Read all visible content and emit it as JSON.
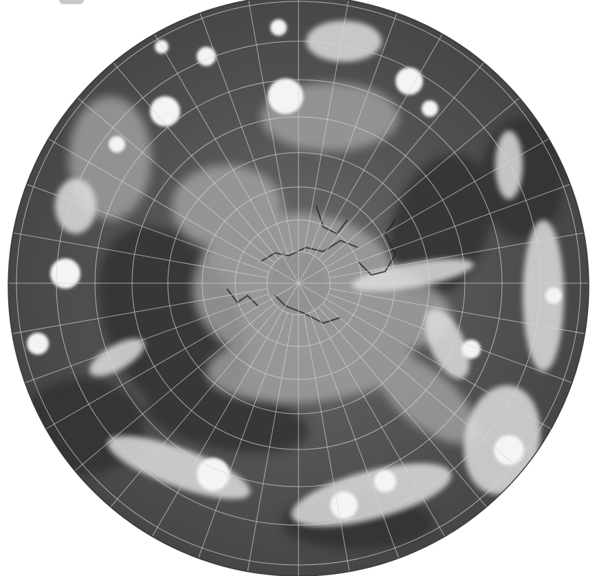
{
  "image": {
    "subject": "satellite-polar-cloud-composite",
    "colors": {
      "ocean_dark": "#3a3a3a",
      "ocean_mid": "#5a5a5a",
      "cloud_bright": "#efefef",
      "graticule": "#d8d8d8",
      "background": "#ffffff"
    },
    "graticule": {
      "latitude_rings": 9,
      "meridians": 36
    }
  }
}
